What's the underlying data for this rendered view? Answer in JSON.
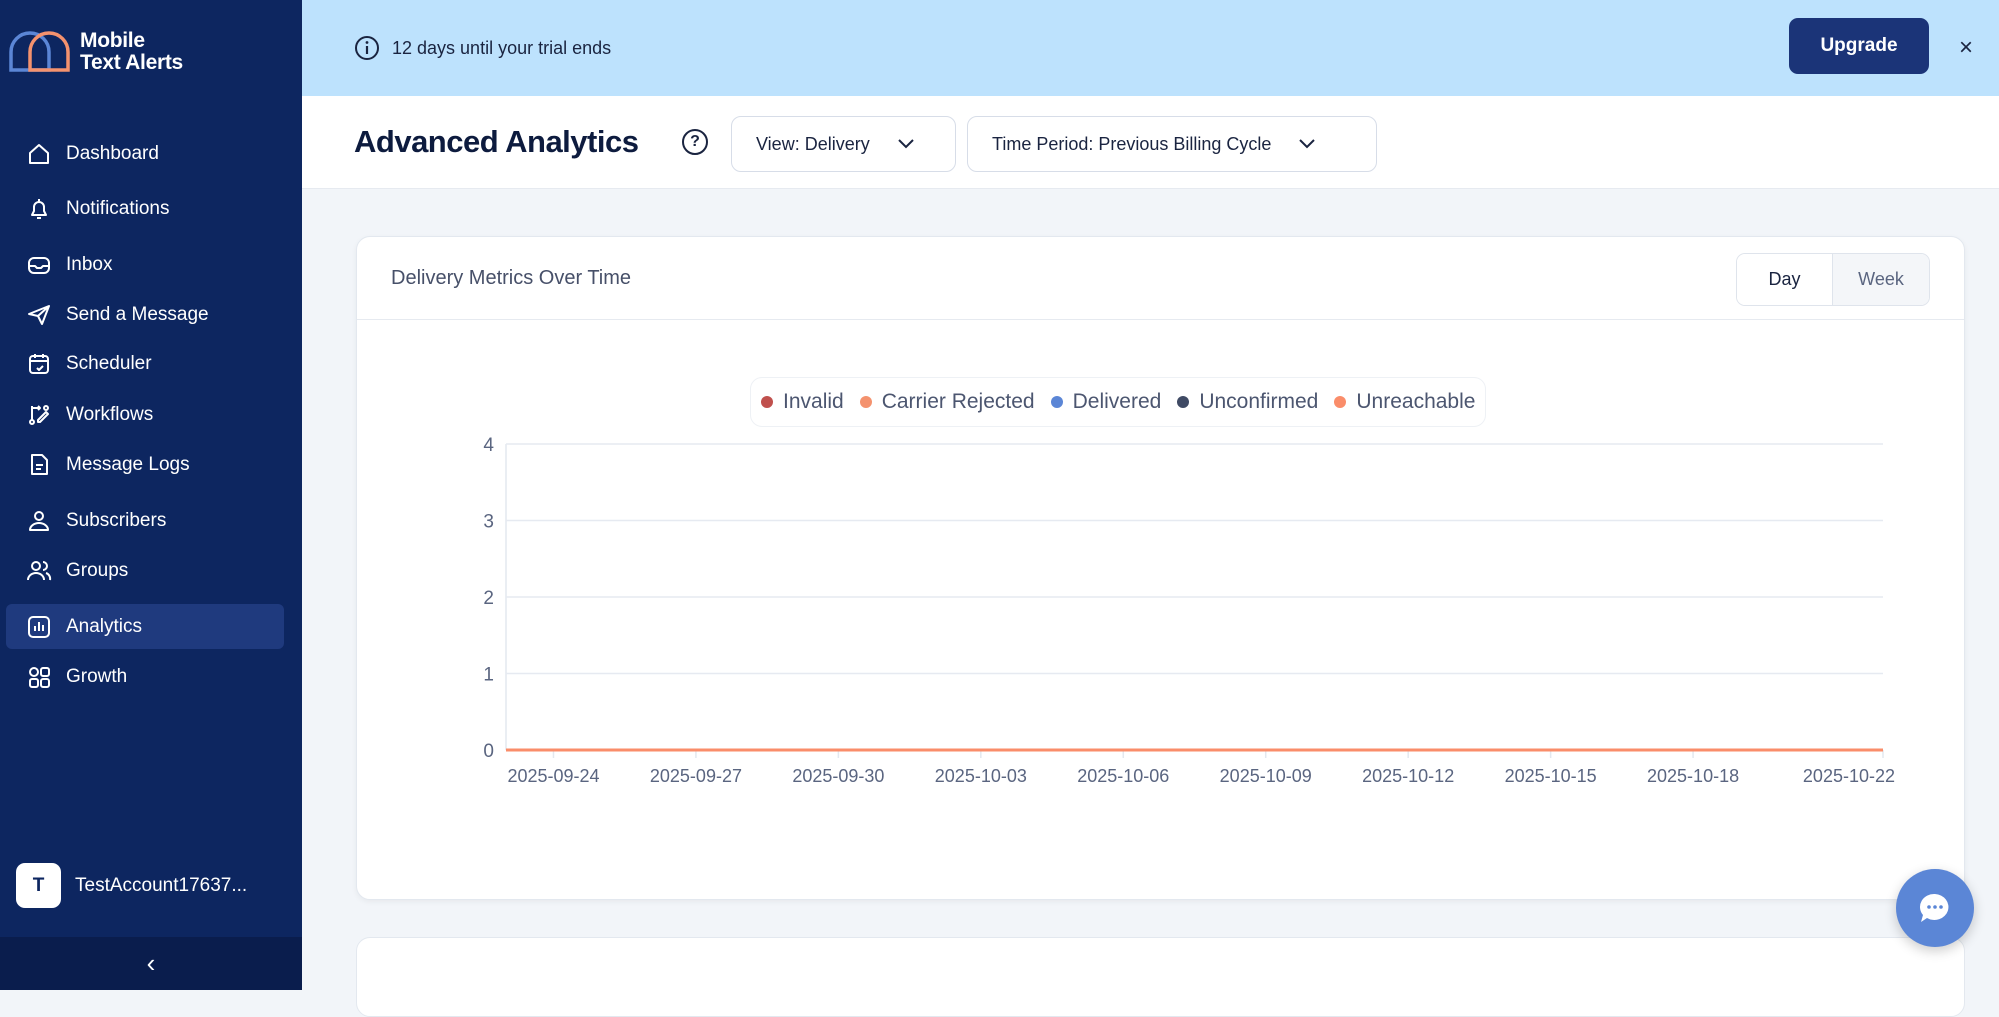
{
  "app": {
    "logo_text_line1": "Mobile",
    "logo_text_line2": "Text Alerts"
  },
  "sidebar": {
    "items": [
      {
        "label": "Dashboard",
        "icon": "home-icon"
      },
      {
        "label": "Notifications",
        "icon": "bell-icon"
      },
      {
        "label": "Inbox",
        "icon": "inbox-icon"
      },
      {
        "label": "Send a Message",
        "icon": "send-icon"
      },
      {
        "label": "Scheduler",
        "icon": "calendar-icon"
      },
      {
        "label": "Workflows",
        "icon": "workflow-icon"
      },
      {
        "label": "Message Logs",
        "icon": "document-icon"
      },
      {
        "label": "Subscribers",
        "icon": "user-icon"
      },
      {
        "label": "Groups",
        "icon": "users-icon"
      },
      {
        "label": "Analytics",
        "icon": "chart-icon",
        "active": true
      },
      {
        "label": "Growth",
        "icon": "grid-icon"
      }
    ],
    "user": {
      "initial": "T",
      "name": "TestAccount17637..."
    }
  },
  "banner": {
    "text": "12 days until your trial ends",
    "upgrade_label": "Upgrade",
    "close": "×"
  },
  "header": {
    "title": "Advanced Analytics",
    "help": "?",
    "view_dropdown": "View: Delivery",
    "period_dropdown": "Time Period: Previous Billing Cycle"
  },
  "card": {
    "title": "Delivery Metrics Over Time",
    "toggle": [
      "Day",
      "Week"
    ],
    "toggle_selected": "Day"
  },
  "chart_data": {
    "type": "line",
    "title": "",
    "xlabel": "",
    "ylabel": "",
    "x_range": [
      "2025-09-23",
      "2025-10-22"
    ],
    "ylim": [
      0,
      4
    ],
    "y_ticks": [
      "0",
      "1",
      "2",
      "3",
      "4"
    ],
    "x_ticks": [
      "2025-09-24",
      "2025-09-27",
      "2025-09-30",
      "2025-10-03",
      "2025-10-06",
      "2025-10-09",
      "2025-10-12",
      "2025-10-15",
      "2025-10-18",
      "2025-10-22"
    ],
    "grid": true,
    "legend_position": "top",
    "series": [
      {
        "name": "Invalid",
        "color": "#c0504d",
        "value_all_days": 0
      },
      {
        "name": "Carrier Rejected",
        "color": "#f4926e",
        "value_all_days": 0
      },
      {
        "name": "Delivered",
        "color": "#5b86d6",
        "value_all_days": 0
      },
      {
        "name": "Unconfirmed",
        "color": "#3f4a64",
        "value_all_days": 0
      },
      {
        "name": "Unreachable",
        "color": "#fa8d6a",
        "value_all_days": 0
      }
    ]
  },
  "colors": {
    "sidebar": "#0d2660",
    "banner": "#bde2fd",
    "accent": "#1b3478",
    "chat": "#5b86d6"
  }
}
